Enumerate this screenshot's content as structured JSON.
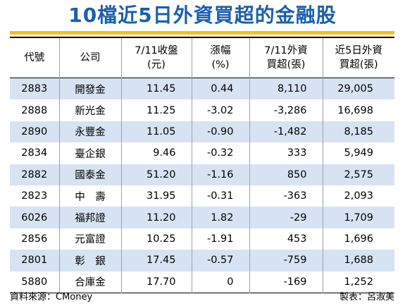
{
  "title": "10檔近5日外資買超的金融股",
  "table": {
    "headers": [
      [
        "代號"
      ],
      [
        "公司"
      ],
      [
        "7/11收盤",
        "(元)"
      ],
      [
        "漲幅",
        "(%)"
      ],
      [
        "7/11外資",
        "買超(張)"
      ],
      [
        "近5日外資",
        "買超(張)"
      ]
    ],
    "rows": [
      [
        "2883",
        "開發金",
        "11.45",
        "0.44",
        "8,110",
        "29,005"
      ],
      [
        "2888",
        "新光金",
        "11.25",
        "-3.02",
        "-3,286",
        "16,698"
      ],
      [
        "2890",
        "永豐金",
        "11.05",
        "-0.90",
        "-1,482",
        "8,185"
      ],
      [
        "2834",
        "臺企銀",
        "9.46",
        "-0.32",
        "333",
        "5,949"
      ],
      [
        "2882",
        "國泰金",
        "51.20",
        "-1.16",
        "850",
        "2,575"
      ],
      [
        "2823",
        "中　壽",
        "31.95",
        "-0.31",
        "-363",
        "2,093"
      ],
      [
        "6026",
        "福邦證",
        "11.20",
        "1.82",
        "-29",
        "1,709"
      ],
      [
        "2856",
        "元富證",
        "10.25",
        "-1.91",
        "453",
        "1,696"
      ],
      [
        "2801",
        "彰　銀",
        "17.45",
        "-0.57",
        "-759",
        "1,688"
      ],
      [
        "5880",
        "合庫金",
        "17.70",
        "0",
        "-169",
        "1,252"
      ]
    ]
  },
  "footer": {
    "source": "資料來源：CMoney",
    "author": "製表：呂淑美"
  },
  "colors": {
    "title": "#1a5fae",
    "title_rule": "#f3c318",
    "row_shade": "#d7e3f3"
  }
}
